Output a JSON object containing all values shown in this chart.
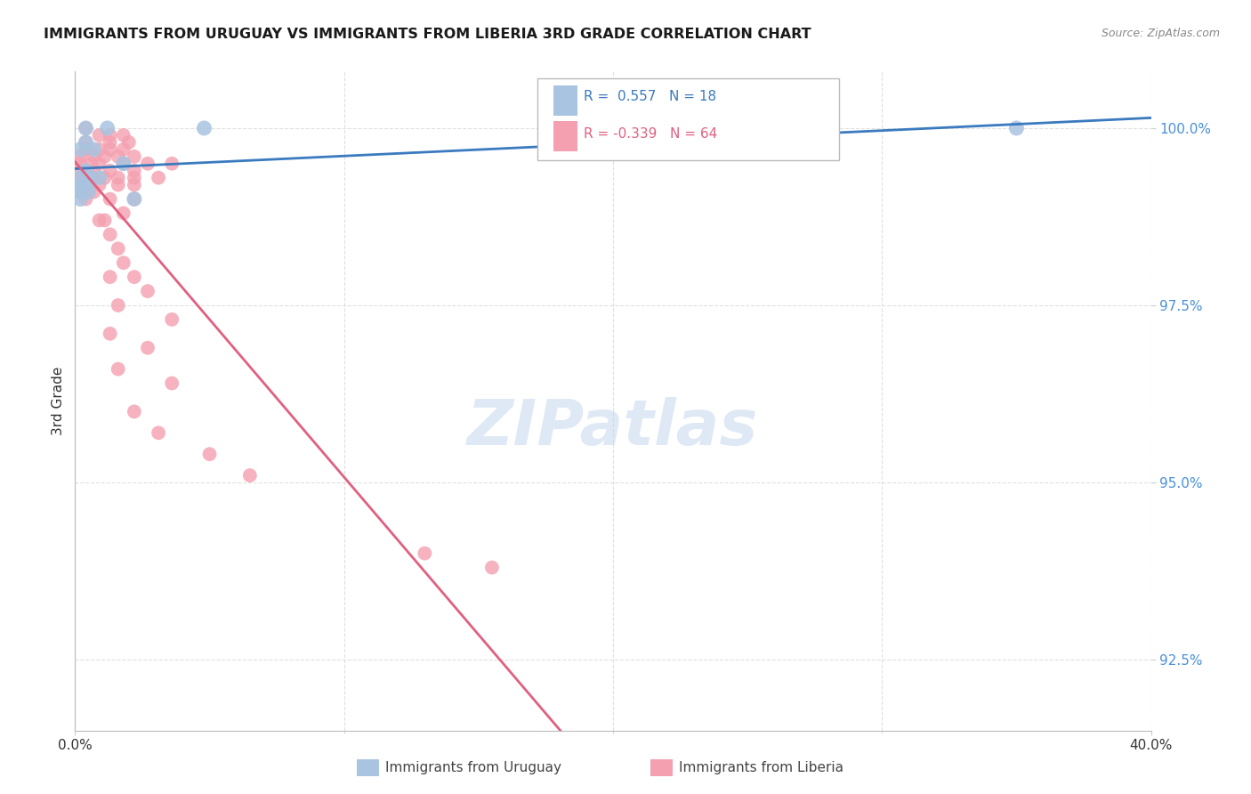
{
  "title": "IMMIGRANTS FROM URUGUAY VS IMMIGRANTS FROM LIBERIA 3RD GRADE CORRELATION CHART",
  "source": "Source: ZipAtlas.com",
  "ylabel": "3rd Grade",
  "ytick_labels": [
    "100.0%",
    "97.5%",
    "95.0%",
    "92.5%"
  ],
  "ytick_values": [
    1.0,
    0.975,
    0.95,
    0.925
  ],
  "xlim": [
    0.0,
    0.4
  ],
  "ylim": [
    0.915,
    1.008
  ],
  "watermark": "ZIPatlas",
  "uruguay_color": "#a8c4e0",
  "liberia_color": "#f4a0b0",
  "uruguay_line_color": "#3a7abf",
  "liberia_line_color": "#e06080",
  "background_color": "#ffffff",
  "grid_color": "#dddddd",
  "uruguay_scatter": [
    [
      0.004,
      1.0
    ],
    [
      0.012,
      1.0
    ],
    [
      0.048,
      1.0
    ],
    [
      0.004,
      0.998
    ],
    [
      0.002,
      0.997
    ],
    [
      0.007,
      0.997
    ],
    [
      0.018,
      0.995
    ],
    [
      0.004,
      0.994
    ],
    [
      0.002,
      0.993
    ],
    [
      0.005,
      0.993
    ],
    [
      0.009,
      0.993
    ],
    [
      0.002,
      0.992
    ],
    [
      0.004,
      0.992
    ],
    [
      0.002,
      0.991
    ],
    [
      0.005,
      0.991
    ],
    [
      0.002,
      0.99
    ],
    [
      0.022,
      0.99
    ],
    [
      0.35,
      1.0
    ]
  ],
  "liberia_scatter": [
    [
      0.004,
      1.0
    ],
    [
      0.009,
      0.999
    ],
    [
      0.013,
      0.999
    ],
    [
      0.018,
      0.999
    ],
    [
      0.004,
      0.998
    ],
    [
      0.013,
      0.998
    ],
    [
      0.02,
      0.998
    ],
    [
      0.004,
      0.997
    ],
    [
      0.009,
      0.997
    ],
    [
      0.013,
      0.997
    ],
    [
      0.018,
      0.997
    ],
    [
      0.002,
      0.996
    ],
    [
      0.007,
      0.996
    ],
    [
      0.011,
      0.996
    ],
    [
      0.016,
      0.996
    ],
    [
      0.022,
      0.996
    ],
    [
      0.002,
      0.995
    ],
    [
      0.006,
      0.995
    ],
    [
      0.009,
      0.995
    ],
    [
      0.018,
      0.995
    ],
    [
      0.027,
      0.995
    ],
    [
      0.036,
      0.995
    ],
    [
      0.002,
      0.994
    ],
    [
      0.007,
      0.994
    ],
    [
      0.013,
      0.994
    ],
    [
      0.022,
      0.994
    ],
    [
      0.002,
      0.993
    ],
    [
      0.007,
      0.993
    ],
    [
      0.011,
      0.993
    ],
    [
      0.016,
      0.993
    ],
    [
      0.022,
      0.993
    ],
    [
      0.031,
      0.993
    ],
    [
      0.002,
      0.992
    ],
    [
      0.009,
      0.992
    ],
    [
      0.016,
      0.992
    ],
    [
      0.022,
      0.992
    ],
    [
      0.002,
      0.991
    ],
    [
      0.007,
      0.991
    ],
    [
      0.004,
      0.99
    ],
    [
      0.013,
      0.99
    ],
    [
      0.022,
      0.99
    ],
    [
      0.018,
      0.988
    ],
    [
      0.009,
      0.987
    ],
    [
      0.011,
      0.987
    ],
    [
      0.013,
      0.985
    ],
    [
      0.016,
      0.983
    ],
    [
      0.018,
      0.981
    ],
    [
      0.013,
      0.979
    ],
    [
      0.022,
      0.979
    ],
    [
      0.027,
      0.977
    ],
    [
      0.016,
      0.975
    ],
    [
      0.036,
      0.973
    ],
    [
      0.013,
      0.971
    ],
    [
      0.027,
      0.969
    ],
    [
      0.016,
      0.966
    ],
    [
      0.036,
      0.964
    ],
    [
      0.022,
      0.96
    ],
    [
      0.031,
      0.957
    ],
    [
      0.05,
      0.954
    ],
    [
      0.065,
      0.951
    ],
    [
      0.13,
      0.94
    ],
    [
      0.155,
      0.938
    ]
  ]
}
